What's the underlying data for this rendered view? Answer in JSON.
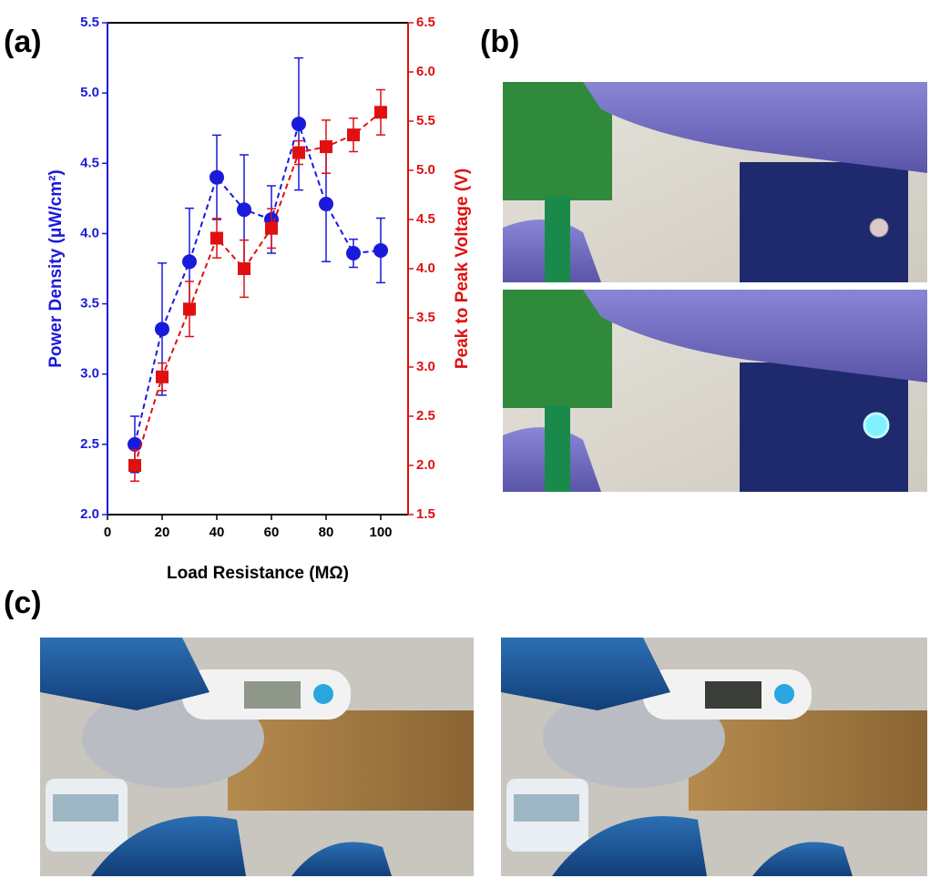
{
  "panel_labels": [
    "(a)",
    "(b)",
    "(c)"
  ],
  "chart_data": {
    "type": "scatter",
    "x_label": "Load Resistance (MΩ)",
    "y_label": "Power Density (μW/cm²)",
    "y2_label": "Peak to Peak Voltage (V)",
    "x": [
      10,
      20,
      30,
      40,
      50,
      60,
      70,
      80,
      90,
      100
    ],
    "xlim": [
      0,
      110
    ],
    "xticks": [
      0,
      20,
      40,
      60,
      80,
      100
    ],
    "ylim": [
      2,
      5.5
    ],
    "yticks": [
      {
        "value": 2,
        "label": "2.0"
      },
      2.5,
      {
        "value": 3,
        "label": "3.0"
      },
      3.5,
      {
        "value": 4,
        "label": "4.0"
      },
      4.5,
      {
        "value": 5,
        "label": "5.0"
      },
      5.5
    ],
    "y2lim": [
      1.5,
      6.5
    ],
    "y2ticks": [
      1.5,
      {
        "value": 2,
        "label": "2.0"
      },
      2.5,
      {
        "value": 3,
        "label": "3.0"
      },
      3.5,
      {
        "value": 4,
        "label": "4.0"
      },
      4.5,
      {
        "value": 5,
        "label": "5.0"
      },
      5.5,
      {
        "value": 6,
        "label": "6.0"
      },
      6.5
    ],
    "y_color": "#1a1adb",
    "y2_color": "#e01010",
    "series": [
      {
        "color": "#1a1adb",
        "marker": "circle",
        "axis": "y",
        "values": [
          2.5,
          3.32,
          3.8,
          4.4,
          4.17,
          4.1,
          4.78,
          4.21,
          3.86,
          3.88
        ],
        "errors": [
          0.2,
          0.47,
          0.38,
          0.3,
          0.39,
          0.24,
          0.47,
          0.41,
          0.1,
          0.23
        ]
      },
      {
        "color": "#e01010",
        "marker": "square",
        "axis": "y2",
        "values": [
          2.0,
          2.9,
          3.59,
          4.31,
          4.0,
          4.41,
          5.18,
          5.24,
          5.36,
          5.59
        ],
        "errors": [
          0.16,
          0.14,
          0.28,
          0.2,
          0.29,
          0.2,
          0.12,
          0.27,
          0.17,
          0.23
        ]
      }
    ]
  }
}
